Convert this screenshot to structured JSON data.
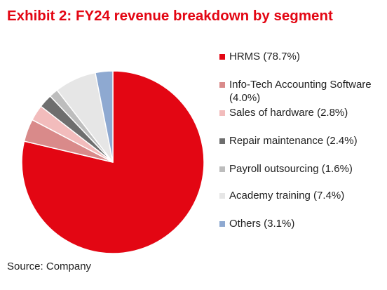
{
  "title": "Exhibit 2: FY24 revenue breakdown by segment",
  "source": "Source: Company",
  "chart_data": {
    "type": "pie",
    "title": "Exhibit 2: FY24 revenue breakdown by segment",
    "start_angle_deg": 0,
    "direction": "clockwise",
    "legend_position": "right",
    "slices": [
      {
        "label": "HRMS (78.7%)",
        "value": 78.7,
        "color": "#e30613"
      },
      {
        "label": "Info-Tech Accounting Software (4.0%)",
        "value": 4.0,
        "color": "#d98a8a"
      },
      {
        "label": "Sales of hardware (2.8%)",
        "value": 2.8,
        "color": "#f2bcbc"
      },
      {
        "label": "Repair maintenance (2.4%)",
        "value": 2.4,
        "color": "#6e6e6e"
      },
      {
        "label": "Payroll outsourcing (1.6%)",
        "value": 1.6,
        "color": "#bdbdbd"
      },
      {
        "label": "Academy training (7.4%)",
        "value": 7.4,
        "color": "#e6e6e6"
      },
      {
        "label": "Others (3.1%)",
        "value": 3.1,
        "color": "#8ea9d1"
      }
    ]
  }
}
